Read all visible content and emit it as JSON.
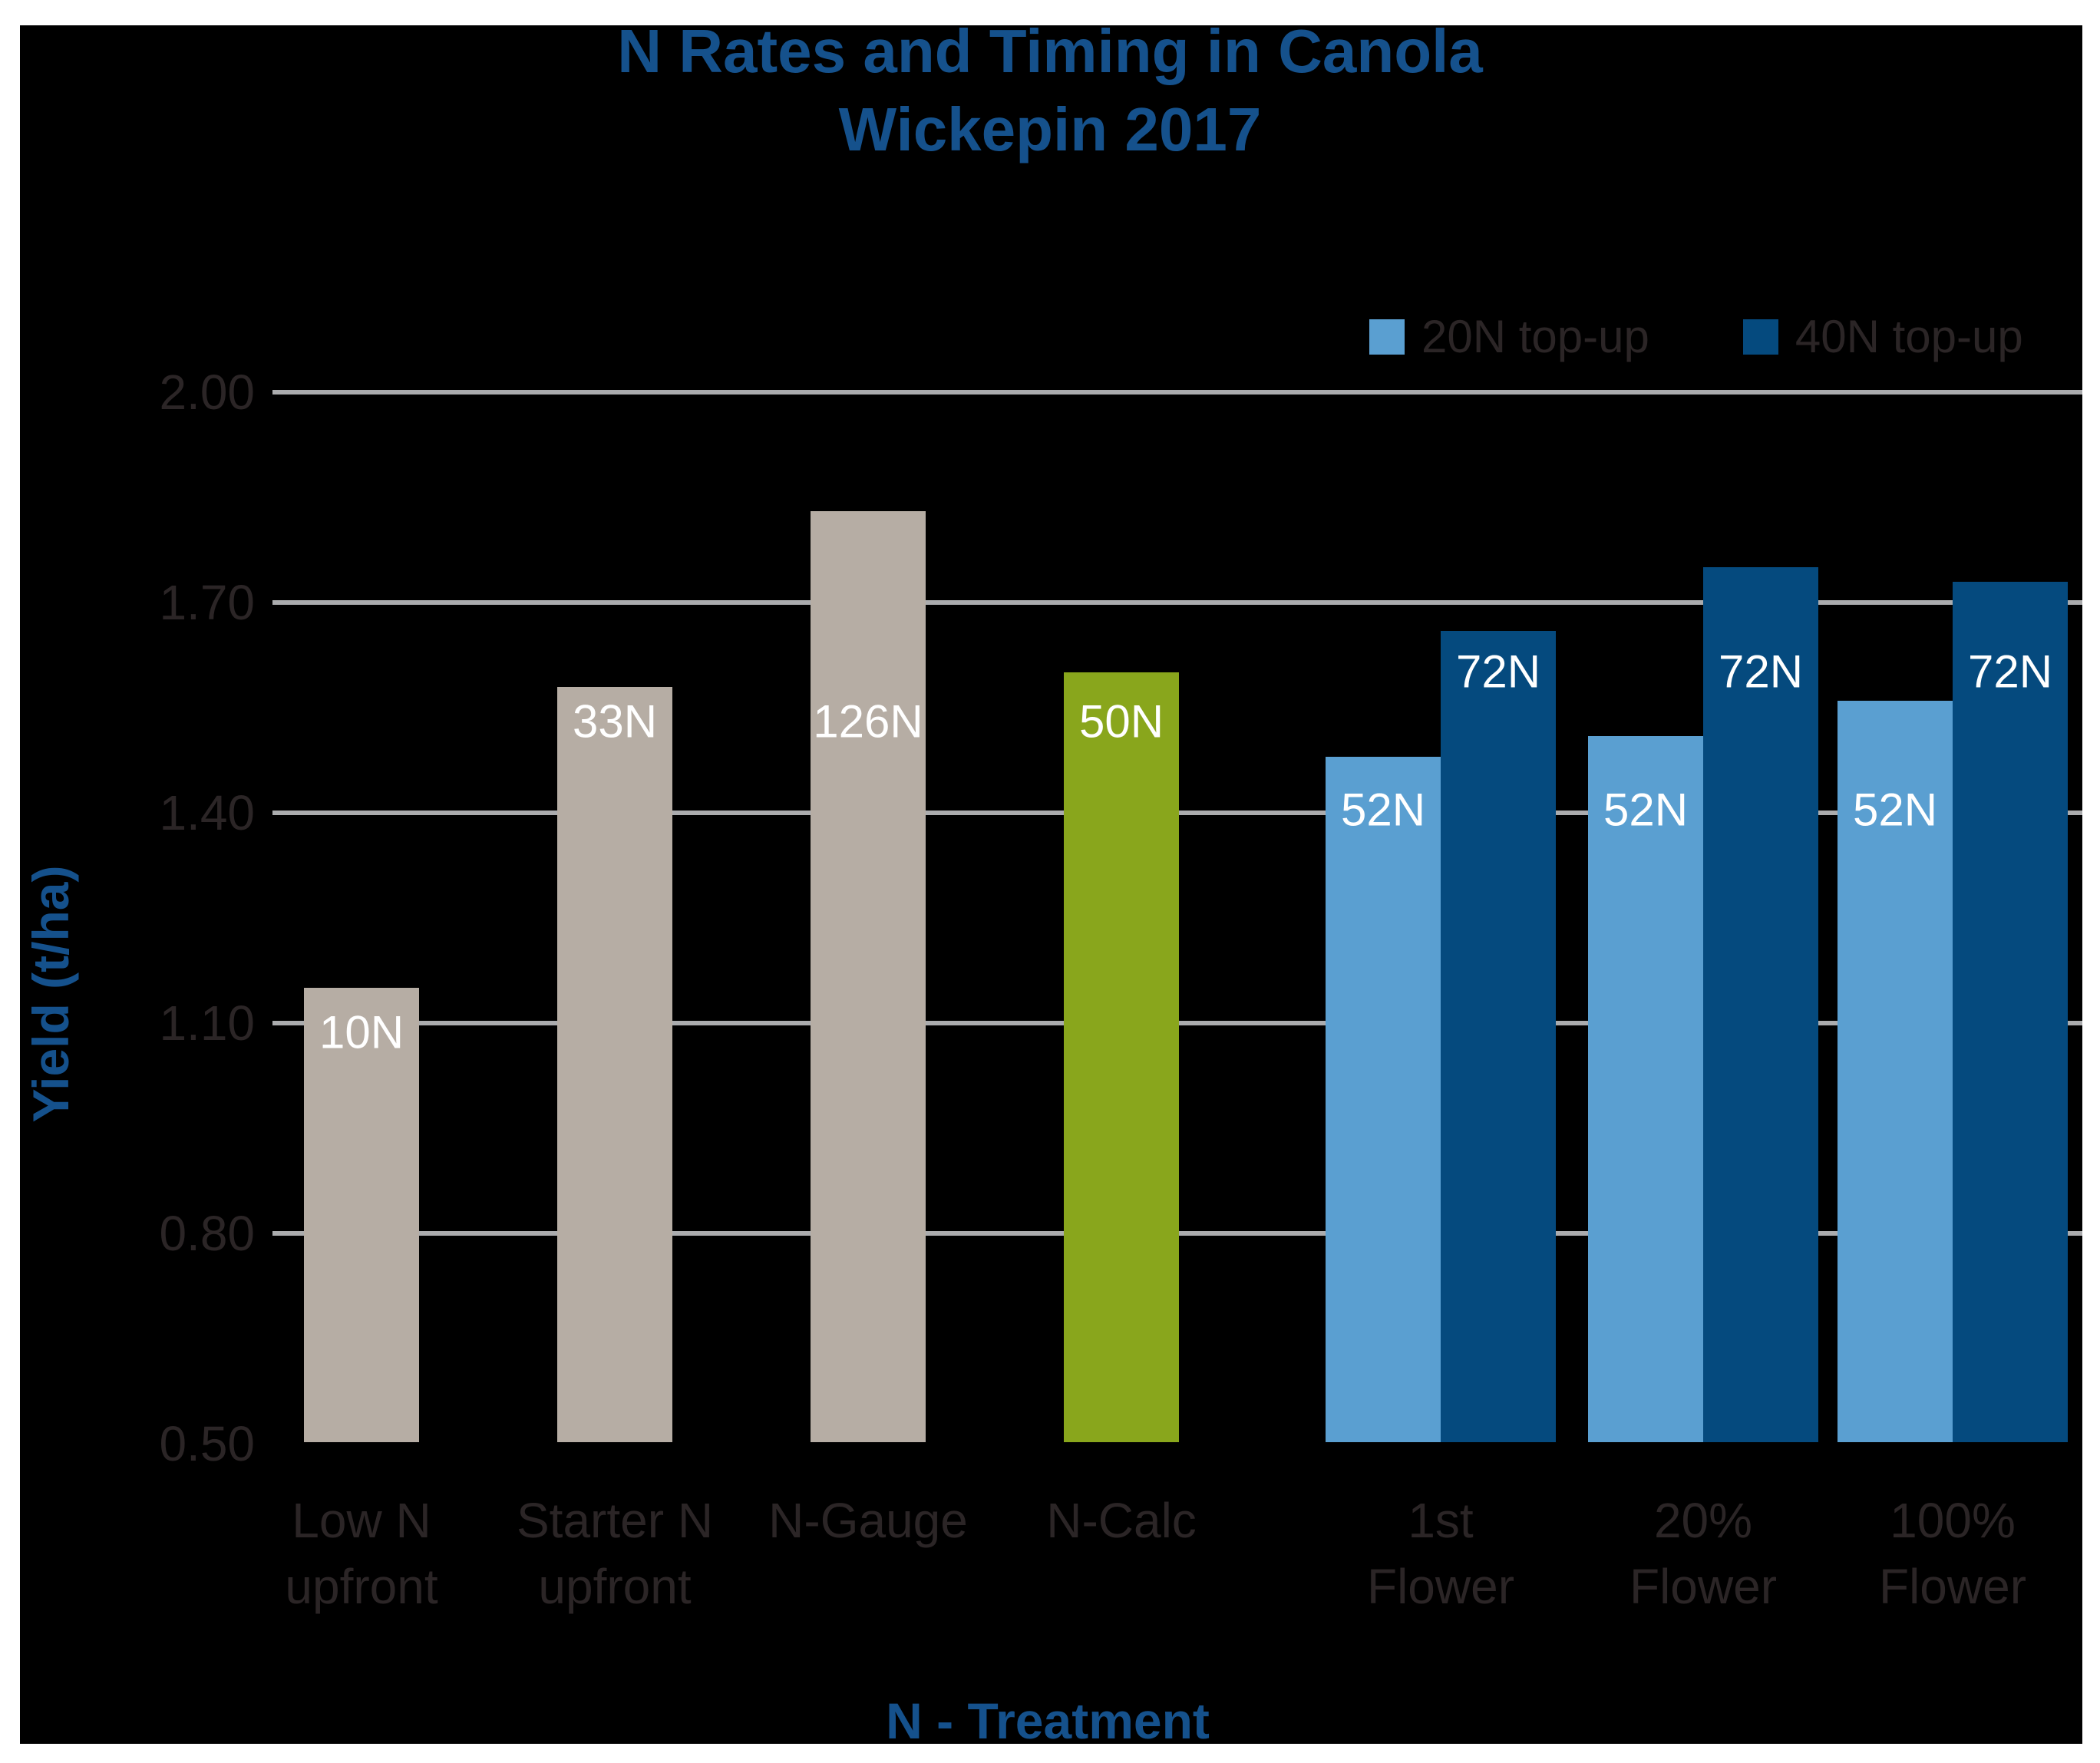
{
  "colors": {
    "background": "#000000",
    "frame_white": "#ffffff",
    "title_blue": "#15518c",
    "grid_gray": "#abacae",
    "text_dark": "#2b2526",
    "bar_gray": "#b6ada4",
    "bar_green": "#89a61c",
    "bar_light_blue": "#5a9fd1",
    "bar_dark_blue": "#054a7e"
  },
  "chart_data": {
    "type": "bar",
    "title": "N Rates and Timing in Canola",
    "subtitle": "Wickepin 2017",
    "xlabel": "N - Treatment",
    "ylabel": "Yield (t/ha)",
    "ylim": [
      0.5,
      2.0
    ],
    "grid": "horizontal gridlines at labeled ticks except 0.50",
    "legend_position": "top-right",
    "yticks": [
      {
        "label": "2.00",
        "value": 2.0,
        "grid": true
      },
      {
        "label": "1.70",
        "value": 1.7,
        "grid": true
      },
      {
        "label": "1.40",
        "value": 1.4,
        "grid": true
      },
      {
        "label": "1.10",
        "value": 1.1,
        "grid": true
      },
      {
        "label": "0.80",
        "value": 0.8,
        "grid": true
      },
      {
        "label": "0.50",
        "value": 0.5,
        "grid": false
      }
    ],
    "legend": [
      {
        "label": "20N top-up",
        "color": "bar_light_blue"
      },
      {
        "label": "40N top-up",
        "color": "bar_dark_blue"
      }
    ],
    "categories": [
      {
        "label_lines": [
          "Low N",
          "upfront"
        ],
        "bars": [
          {
            "label": "10N",
            "value": 1.15,
            "color": "bar_gray"
          }
        ]
      },
      {
        "label_lines": [
          "Starter N",
          "upfront"
        ],
        "bars": [
          {
            "label": "33N",
            "value": 1.58,
            "color": "bar_gray"
          }
        ]
      },
      {
        "label_lines": [
          "N-Gauge"
        ],
        "bars": [
          {
            "label": "126N",
            "value": 1.83,
            "color": "bar_gray"
          }
        ]
      },
      {
        "label_lines": [
          "N-Calc"
        ],
        "bars": [
          {
            "label": "50N",
            "value": 1.6,
            "color": "bar_green"
          }
        ]
      },
      {
        "label_lines": [
          "1st",
          "Flower"
        ],
        "bars": [
          {
            "label": "52N",
            "value": 1.48,
            "color": "bar_light_blue",
            "series": "20N top-up"
          },
          {
            "label": "72N",
            "value": 1.66,
            "color": "bar_dark_blue",
            "series": "40N top-up"
          }
        ]
      },
      {
        "label_lines": [
          "20%",
          "Flower"
        ],
        "bars": [
          {
            "label": "52N",
            "value": 1.51,
            "color": "bar_light_blue",
            "series": "20N top-up"
          },
          {
            "label": "72N",
            "value": 1.75,
            "color": "bar_dark_blue",
            "series": "40N top-up"
          }
        ]
      },
      {
        "label_lines": [
          "100%",
          "Flower"
        ],
        "bars": [
          {
            "label": "52N",
            "value": 1.56,
            "color": "bar_light_blue",
            "series": "20N top-up"
          },
          {
            "label": "72N",
            "value": 1.73,
            "color": "bar_dark_blue",
            "series": "40N top-up"
          }
        ]
      }
    ]
  }
}
